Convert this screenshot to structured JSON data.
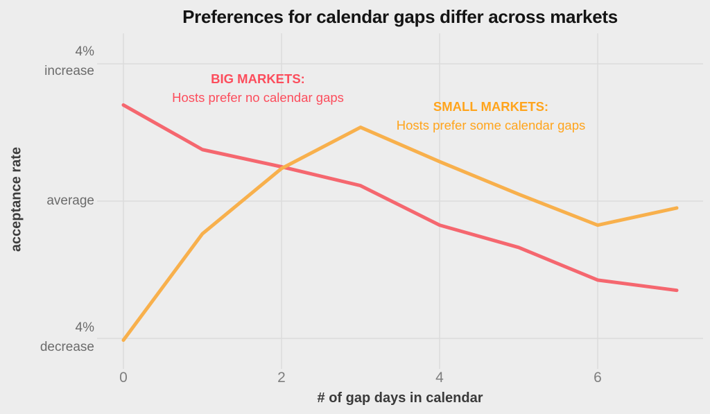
{
  "title": "Preferences for calendar gaps differ across markets",
  "colors": {
    "background": "#EDEDED",
    "gridline": "#DBDBDB",
    "title_text": "#141414",
    "axis_title_text": "#3A3A3A",
    "y_tick_text": "#6B6B6B",
    "x_tick_text": "#7E7E7E",
    "big_markets_line": "#F5676F",
    "big_markets_text": "#FC4D5C",
    "small_markets_line": "#F8B04C",
    "small_markets_text": "#FFA41C"
  },
  "y_axis": {
    "label": "acceptance rate",
    "tick_top": "4%\nincrease",
    "tick_mid": "average",
    "tick_bottom": "4%\ndecrease"
  },
  "x_axis": {
    "label": "# of gap days in calendar",
    "ticks": [
      "0",
      "2",
      "4",
      "6"
    ]
  },
  "annotations": {
    "big": {
      "heading": "BIG MARKETS:",
      "body": "Hosts prefer no calendar gaps"
    },
    "small": {
      "heading": "SMALL MARKETS:",
      "body": "Hosts prefer some calendar gaps"
    }
  },
  "chart_data": {
    "type": "line",
    "title": "Preferences for calendar gaps differ across markets",
    "xlabel": "# of gap days in calendar",
    "ylabel": "acceptance rate",
    "x": [
      0,
      1,
      2,
      3,
      4,
      5,
      6,
      7
    ],
    "series": [
      {
        "name": "BIG MARKETS: Hosts prefer no calendar gaps",
        "color": "#F5676F",
        "values_pct_vs_average": [
          2.8,
          1.5,
          1.0,
          0.45,
          -0.7,
          -1.35,
          -2.3,
          -2.6
        ]
      },
      {
        "name": "SMALL MARKETS: Hosts prefer some calendar gaps",
        "color": "#F8B04C",
        "values_pct_vs_average": [
          -4.05,
          -0.95,
          0.95,
          2.15,
          1.15,
          0.2,
          -0.7,
          -0.2
        ]
      }
    ],
    "y_gridline_values_pct": [
      4,
      0,
      -4
    ],
    "y_gridline_labels": [
      "4% increase",
      "average",
      "4% decrease"
    ],
    "x_gridline_values": [
      0,
      2,
      4,
      6
    ],
    "ylim_pct": [
      -4.8,
      4.8
    ],
    "xlim": [
      0,
      7.35
    ],
    "grid": true,
    "legend_position": "inline-annotations"
  }
}
